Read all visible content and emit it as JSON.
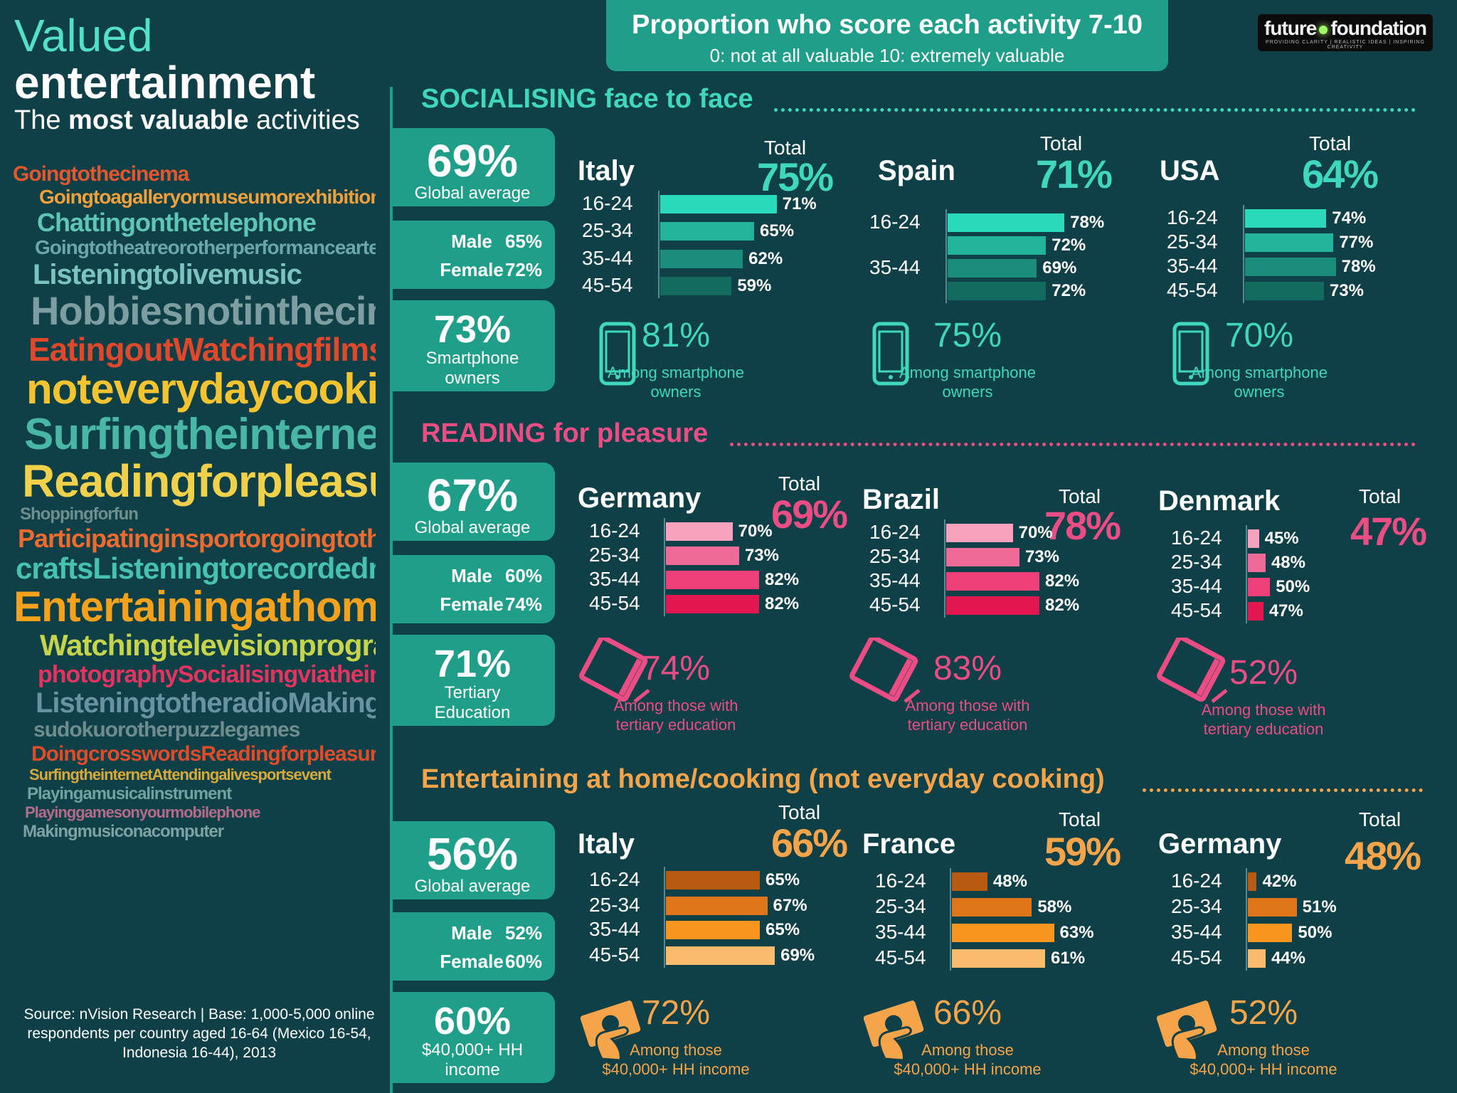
{
  "title": {
    "line1": "Valued",
    "line2": "entertainment",
    "line3_prefix": "The ",
    "line3_bold": "most valuable",
    "line3_suffix": " activities"
  },
  "header": {
    "title": "Proportion who score each activity 7-10",
    "subtitle": "0: not at all valuable 10: extremely valuable"
  },
  "logo": {
    "left": "future",
    "right": "foundation",
    "tagline": "PROVIDING CLARITY | REALISTIC IDEAS | INSPIRING CREATIVITY"
  },
  "source": "Source: nVision Research | Base: 1,000-5,000 online respondents per country aged 16-64 (Mexico 16-54, Indonesia 16-44), 2013",
  "colors": {
    "background": "#0f3f47",
    "teal_box": "#1f9e8a",
    "social": "#3fd8bf",
    "reading": "#ea4d83",
    "entertaining": "#f5a44a"
  },
  "word_cloud": [
    "Goingtothecinema",
    "Goingtoagalleryormuseumorexhibition",
    "Chattingonthetelephone",
    "Goingtotheatreorotherperformanceartevent",
    "Listeningtolivemusic",
    "Hobbiesnotinthecinema",
    "EatingoutWatchingfilms",
    "noteverydaycooking",
    "Surfingtheinternet",
    "Readingforpleasure",
    "Shoppingforfun",
    "Participatinginsportorgoingtothegym",
    "craftsListeningtorecordedmusic",
    "Entertainingathome",
    "Watchingtelevisionprogrammes",
    "photographySocialisingviatheinternet",
    "ListeningtotheradioMakingart",
    "sudokuorotherpuzzlegames",
    "DoingcrosswordsReadingforpleasure",
    "SurfingtheinternetAttendingalivesportsevent",
    "Playingamusicalinstrument",
    "Playinggamesonyourmobilephone",
    "Makingmusiconacomputer"
  ],
  "sections": [
    {
      "id": "socialising",
      "title": "SOCIALISING face to face",
      "global": {
        "value": "69%",
        "label": "Global average"
      },
      "male": {
        "label": "Male",
        "value": "65%"
      },
      "female": {
        "label": "Female",
        "value": "72%"
      },
      "extra": {
        "value": "73%",
        "label1": "Smartphone",
        "label2": "owners"
      },
      "icon": "smartphone-icon",
      "countries": [
        {
          "name": "Italy",
          "total_label": "Total",
          "total": "75%",
          "bars": [
            {
              "age": "16-24",
              "value": 71
            },
            {
              "age": "25-34",
              "value": 65
            },
            {
              "age": "35-44",
              "value": 62
            },
            {
              "age": "45-54",
              "value": 59
            }
          ],
          "sub_value": "81%",
          "sub_text1": "Among smartphone",
          "sub_text2": "owners"
        },
        {
          "name": "Spain",
          "total_label": "Total",
          "total": "71%",
          "bars": [
            {
              "age": "16-24",
              "value": 78
            },
            {
              "age": "",
              "value": 72
            },
            {
              "age": "35-44",
              "value": 69
            },
            {
              "age": "",
              "value": 72
            }
          ],
          "sub_value": "75%",
          "sub_text1": "Among smartphone",
          "sub_text2": "owners"
        },
        {
          "name": "USA",
          "total_label": "Total",
          "total": "64%",
          "bars": [
            {
              "age": "16-24",
              "value": 74
            },
            {
              "age": "25-34",
              "value": 77
            },
            {
              "age": "35-44",
              "value": 78
            },
            {
              "age": "45-54",
              "value": 73
            }
          ],
          "sub_value": "70%",
          "sub_text1": "Among smartphone",
          "sub_text2": "owners"
        }
      ]
    },
    {
      "id": "reading",
      "title": "READING for pleasure",
      "global": {
        "value": "67%",
        "label": "Global average"
      },
      "male": {
        "label": "Male",
        "value": "60%"
      },
      "female": {
        "label": "Female",
        "value": "74%"
      },
      "extra": {
        "value": "71%",
        "label1": "Tertiary",
        "label2": "Education"
      },
      "icon": "tablet-icon",
      "countries": [
        {
          "name": "Germany",
          "total_label": "Total",
          "total": "69%",
          "bars": [
            {
              "age": "16-24",
              "value": 70
            },
            {
              "age": "25-34",
              "value": 73
            },
            {
              "age": "35-44",
              "value": 82
            },
            {
              "age": "45-54",
              "value": 82
            }
          ],
          "sub_value": "74%",
          "sub_text1": "Among  those with",
          "sub_text2": "tertiary education"
        },
        {
          "name": "Brazil",
          "total_label": "Total",
          "total": "78%",
          "bars": [
            {
              "age": "16-24",
              "value": 70
            },
            {
              "age": "25-34",
              "value": 73
            },
            {
              "age": "35-44",
              "value": 82
            },
            {
              "age": "45-54",
              "value": 82
            }
          ],
          "sub_value": "83%",
          "sub_text1": "Among  those with",
          "sub_text2": "tertiary education"
        },
        {
          "name": "Denmark",
          "total_label": "Total",
          "total": "47%",
          "bars": [
            {
              "age": "16-24",
              "value": 45
            },
            {
              "age": "25-34",
              "value": 48
            },
            {
              "age": "35-44",
              "value": 50
            },
            {
              "age": "45-54",
              "value": 47
            }
          ],
          "sub_value": "52%",
          "sub_text1": "Among  those with",
          "sub_text2": "tertiary education"
        }
      ]
    },
    {
      "id": "entertaining",
      "title": "Entertaining at home/cooking (not everyday cooking)",
      "global": {
        "value": "56%",
        "label": "Global average"
      },
      "male": {
        "label": "Male",
        "value": "52%"
      },
      "female": {
        "label": "Female",
        "value": "60%"
      },
      "extra": {
        "value": "60%",
        "label1": "$40,000+ HH",
        "label2": "income"
      },
      "icon": "money-hand-icon",
      "countries": [
        {
          "name": "Italy",
          "total_label": "Total",
          "total": "66%",
          "bars": [
            {
              "age": "16-24",
              "value": 65
            },
            {
              "age": "25-34",
              "value": 67
            },
            {
              "age": "35-44",
              "value": 65
            },
            {
              "age": "45-54",
              "value": 69
            }
          ],
          "sub_value": "72%",
          "sub_text1": "Among  those",
          "sub_text2": "$40,000+ HH income"
        },
        {
          "name": "France",
          "total_label": "Total",
          "total": "59%",
          "bars": [
            {
              "age": "16-24",
              "value": 48
            },
            {
              "age": "25-34",
              "value": 58
            },
            {
              "age": "35-44",
              "value": 63
            },
            {
              "age": "45-54",
              "value": 61
            }
          ],
          "sub_value": "66%",
          "sub_text1": "Among  those",
          "sub_text2": "$40,000+ HH income"
        },
        {
          "name": "Germany",
          "total_label": "Total",
          "total": "48%",
          "bars": [
            {
              "age": "16-24",
              "value": 42
            },
            {
              "age": "25-34",
              "value": 51
            },
            {
              "age": "35-44",
              "value": 50
            },
            {
              "age": "45-54",
              "value": 44
            }
          ],
          "sub_value": "52%",
          "sub_text1": "Among  those",
          "sub_text2": "$40,000+ HH income"
        }
      ]
    }
  ],
  "chart_data": [
    {
      "type": "bar",
      "title": "SOCIALISING face to face - Italy",
      "categories": [
        "16-24",
        "25-34",
        "35-44",
        "45-54"
      ],
      "values": [
        71,
        65,
        62,
        59
      ],
      "total": 75
    },
    {
      "type": "bar",
      "title": "SOCIALISING face to face - Spain",
      "categories": [
        "16-24",
        "",
        "35-44",
        ""
      ],
      "values": [
        78,
        72,
        69,
        72
      ],
      "total": 71
    },
    {
      "type": "bar",
      "title": "SOCIALISING face to face - USA",
      "categories": [
        "16-24",
        "25-34",
        "35-44",
        "45-54"
      ],
      "values": [
        74,
        77,
        78,
        73
      ],
      "total": 64
    },
    {
      "type": "bar",
      "title": "READING for pleasure - Germany",
      "categories": [
        "16-24",
        "25-34",
        "35-44",
        "45-54"
      ],
      "values": [
        70,
        73,
        82,
        82
      ],
      "total": 69
    },
    {
      "type": "bar",
      "title": "READING for pleasure - Brazil",
      "categories": [
        "16-24",
        "25-34",
        "35-44",
        "45-54"
      ],
      "values": [
        70,
        73,
        82,
        82
      ],
      "total": 78
    },
    {
      "type": "bar",
      "title": "READING for pleasure - Denmark",
      "categories": [
        "16-24",
        "25-34",
        "35-44",
        "45-54"
      ],
      "values": [
        45,
        48,
        50,
        47
      ],
      "total": 47
    },
    {
      "type": "bar",
      "title": "Entertaining at home/cooking - Italy",
      "categories": [
        "16-24",
        "25-34",
        "35-44",
        "45-54"
      ],
      "values": [
        65,
        67,
        65,
        69
      ],
      "total": 66
    },
    {
      "type": "bar",
      "title": "Entertaining at home/cooking - France",
      "categories": [
        "16-24",
        "25-34",
        "35-44",
        "45-54"
      ],
      "values": [
        48,
        58,
        63,
        61
      ],
      "total": 59
    },
    {
      "type": "bar",
      "title": "Entertaining at home/cooking - Germany",
      "categories": [
        "16-24",
        "25-34",
        "35-44",
        "45-54"
      ],
      "values": [
        42,
        51,
        50,
        44
      ],
      "total": 48
    }
  ]
}
